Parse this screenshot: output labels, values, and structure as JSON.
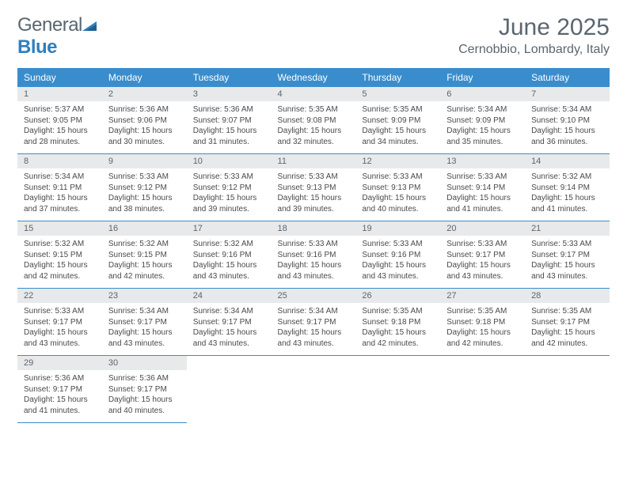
{
  "logo": {
    "text_general": "General",
    "text_blue": "Blue"
  },
  "header": {
    "month": "June 2025",
    "location": "Cernobbio, Lombardy, Italy"
  },
  "colors": {
    "header_bg": "#3a8dcc",
    "daynum_bg": "#e8e9ea",
    "text_gray": "#5a6670",
    "body_text": "#4a4a4a",
    "border": "#3a8dcc"
  },
  "day_names": [
    "Sunday",
    "Monday",
    "Tuesday",
    "Wednesday",
    "Thursday",
    "Friday",
    "Saturday"
  ],
  "weeks": [
    [
      {
        "num": "1",
        "sunrise": "Sunrise: 5:37 AM",
        "sunset": "Sunset: 9:05 PM",
        "daylight": "Daylight: 15 hours and 28 minutes."
      },
      {
        "num": "2",
        "sunrise": "Sunrise: 5:36 AM",
        "sunset": "Sunset: 9:06 PM",
        "daylight": "Daylight: 15 hours and 30 minutes."
      },
      {
        "num": "3",
        "sunrise": "Sunrise: 5:36 AM",
        "sunset": "Sunset: 9:07 PM",
        "daylight": "Daylight: 15 hours and 31 minutes."
      },
      {
        "num": "4",
        "sunrise": "Sunrise: 5:35 AM",
        "sunset": "Sunset: 9:08 PM",
        "daylight": "Daylight: 15 hours and 32 minutes."
      },
      {
        "num": "5",
        "sunrise": "Sunrise: 5:35 AM",
        "sunset": "Sunset: 9:09 PM",
        "daylight": "Daylight: 15 hours and 34 minutes."
      },
      {
        "num": "6",
        "sunrise": "Sunrise: 5:34 AM",
        "sunset": "Sunset: 9:09 PM",
        "daylight": "Daylight: 15 hours and 35 minutes."
      },
      {
        "num": "7",
        "sunrise": "Sunrise: 5:34 AM",
        "sunset": "Sunset: 9:10 PM",
        "daylight": "Daylight: 15 hours and 36 minutes."
      }
    ],
    [
      {
        "num": "8",
        "sunrise": "Sunrise: 5:34 AM",
        "sunset": "Sunset: 9:11 PM",
        "daylight": "Daylight: 15 hours and 37 minutes."
      },
      {
        "num": "9",
        "sunrise": "Sunrise: 5:33 AM",
        "sunset": "Sunset: 9:12 PM",
        "daylight": "Daylight: 15 hours and 38 minutes."
      },
      {
        "num": "10",
        "sunrise": "Sunrise: 5:33 AM",
        "sunset": "Sunset: 9:12 PM",
        "daylight": "Daylight: 15 hours and 39 minutes."
      },
      {
        "num": "11",
        "sunrise": "Sunrise: 5:33 AM",
        "sunset": "Sunset: 9:13 PM",
        "daylight": "Daylight: 15 hours and 39 minutes."
      },
      {
        "num": "12",
        "sunrise": "Sunrise: 5:33 AM",
        "sunset": "Sunset: 9:13 PM",
        "daylight": "Daylight: 15 hours and 40 minutes."
      },
      {
        "num": "13",
        "sunrise": "Sunrise: 5:33 AM",
        "sunset": "Sunset: 9:14 PM",
        "daylight": "Daylight: 15 hours and 41 minutes."
      },
      {
        "num": "14",
        "sunrise": "Sunrise: 5:32 AM",
        "sunset": "Sunset: 9:14 PM",
        "daylight": "Daylight: 15 hours and 41 minutes."
      }
    ],
    [
      {
        "num": "15",
        "sunrise": "Sunrise: 5:32 AM",
        "sunset": "Sunset: 9:15 PM",
        "daylight": "Daylight: 15 hours and 42 minutes."
      },
      {
        "num": "16",
        "sunrise": "Sunrise: 5:32 AM",
        "sunset": "Sunset: 9:15 PM",
        "daylight": "Daylight: 15 hours and 42 minutes."
      },
      {
        "num": "17",
        "sunrise": "Sunrise: 5:32 AM",
        "sunset": "Sunset: 9:16 PM",
        "daylight": "Daylight: 15 hours and 43 minutes."
      },
      {
        "num": "18",
        "sunrise": "Sunrise: 5:33 AM",
        "sunset": "Sunset: 9:16 PM",
        "daylight": "Daylight: 15 hours and 43 minutes."
      },
      {
        "num": "19",
        "sunrise": "Sunrise: 5:33 AM",
        "sunset": "Sunset: 9:16 PM",
        "daylight": "Daylight: 15 hours and 43 minutes."
      },
      {
        "num": "20",
        "sunrise": "Sunrise: 5:33 AM",
        "sunset": "Sunset: 9:17 PM",
        "daylight": "Daylight: 15 hours and 43 minutes."
      },
      {
        "num": "21",
        "sunrise": "Sunrise: 5:33 AM",
        "sunset": "Sunset: 9:17 PM",
        "daylight": "Daylight: 15 hours and 43 minutes."
      }
    ],
    [
      {
        "num": "22",
        "sunrise": "Sunrise: 5:33 AM",
        "sunset": "Sunset: 9:17 PM",
        "daylight": "Daylight: 15 hours and 43 minutes."
      },
      {
        "num": "23",
        "sunrise": "Sunrise: 5:34 AM",
        "sunset": "Sunset: 9:17 PM",
        "daylight": "Daylight: 15 hours and 43 minutes."
      },
      {
        "num": "24",
        "sunrise": "Sunrise: 5:34 AM",
        "sunset": "Sunset: 9:17 PM",
        "daylight": "Daylight: 15 hours and 43 minutes."
      },
      {
        "num": "25",
        "sunrise": "Sunrise: 5:34 AM",
        "sunset": "Sunset: 9:17 PM",
        "daylight": "Daylight: 15 hours and 43 minutes."
      },
      {
        "num": "26",
        "sunrise": "Sunrise: 5:35 AM",
        "sunset": "Sunset: 9:18 PM",
        "daylight": "Daylight: 15 hours and 42 minutes."
      },
      {
        "num": "27",
        "sunrise": "Sunrise: 5:35 AM",
        "sunset": "Sunset: 9:18 PM",
        "daylight": "Daylight: 15 hours and 42 minutes."
      },
      {
        "num": "28",
        "sunrise": "Sunrise: 5:35 AM",
        "sunset": "Sunset: 9:17 PM",
        "daylight": "Daylight: 15 hours and 42 minutes."
      }
    ],
    [
      {
        "num": "29",
        "sunrise": "Sunrise: 5:36 AM",
        "sunset": "Sunset: 9:17 PM",
        "daylight": "Daylight: 15 hours and 41 minutes."
      },
      {
        "num": "30",
        "sunrise": "Sunrise: 5:36 AM",
        "sunset": "Sunset: 9:17 PM",
        "daylight": "Daylight: 15 hours and 40 minutes."
      },
      null,
      null,
      null,
      null,
      null
    ]
  ]
}
